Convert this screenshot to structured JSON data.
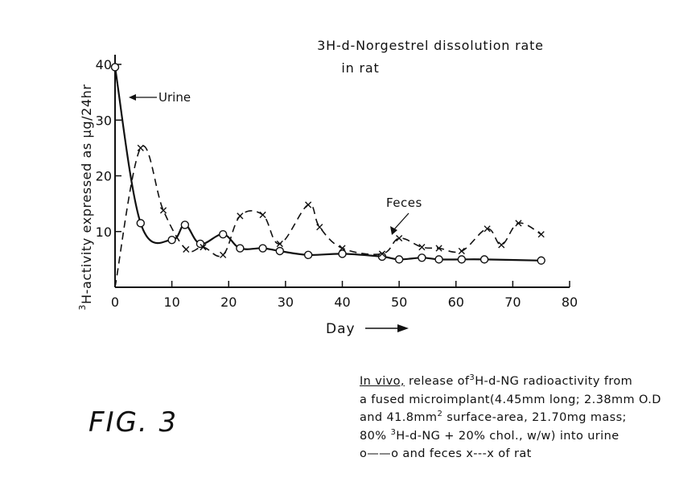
{
  "chart_data": {
    "type": "line",
    "title_line1": "3H-d-Norgestrel dissolution rate",
    "title_line2": "in rat",
    "ylabel_sup": "3",
    "ylabel": "H-activity expressed as µg/24hr",
    "xlabel": "Day",
    "xlim": [
      0,
      80
    ],
    "ylim": [
      0,
      40
    ],
    "x_ticks": [
      0,
      10,
      20,
      30,
      40,
      50,
      60,
      70,
      80
    ],
    "y_ticks": [
      10,
      20,
      30,
      40
    ],
    "series": [
      {
        "name": "Urine",
        "marker": "circle",
        "line": "solid",
        "x": [
          0,
          4.5,
          10,
          12.3,
          15,
          19,
          22,
          26,
          29,
          34,
          40,
          47,
          50,
          54,
          57,
          61,
          65,
          75
        ],
        "y": [
          39.5,
          11.5,
          8.5,
          11.2,
          7.8,
          9.5,
          7.0,
          7.0,
          6.5,
          5.8,
          6.0,
          5.5,
          5.0,
          5.3,
          5.0,
          5.0,
          5.0,
          4.8
        ]
      },
      {
        "name": "Feces",
        "marker": "x",
        "line": "dashed",
        "x": [
          0,
          4.5,
          8.5,
          12.5,
          15.5,
          19,
          22,
          26,
          29,
          34,
          36,
          40,
          47,
          50,
          54,
          57,
          61,
          65.5,
          68,
          71,
          75
        ],
        "y": [
          0,
          25,
          13.8,
          6.8,
          7.2,
          5.8,
          12.8,
          13.0,
          7.8,
          14.8,
          10.8,
          7.0,
          6.0,
          8.8,
          7.2,
          7.0,
          6.5,
          10.5,
          7.6,
          11.5,
          9.5
        ]
      }
    ],
    "annotations": [
      "Urine",
      "Feces"
    ]
  },
  "figure_label": "FIG. 3",
  "caption": {
    "line1_underlined": "In vivo,",
    "line1_rest_a": " release of",
    "line1_sup": "3",
    "line1_rest_b": "H-d-NG radioactivity from",
    "line2": "a fused microimplant(4.45mm long; 2.38mm O.D",
    "line3_a": "and 41.8mm",
    "line3_sup": "2",
    "line3_b": " surface-area, 21.70mg mass;",
    "line4_a": "80% ",
    "line4_sup": "3",
    "line4_b": "H-d-NG + 20% chol., w/w) into urine",
    "line5": "o——o and feces x---x of rat"
  }
}
